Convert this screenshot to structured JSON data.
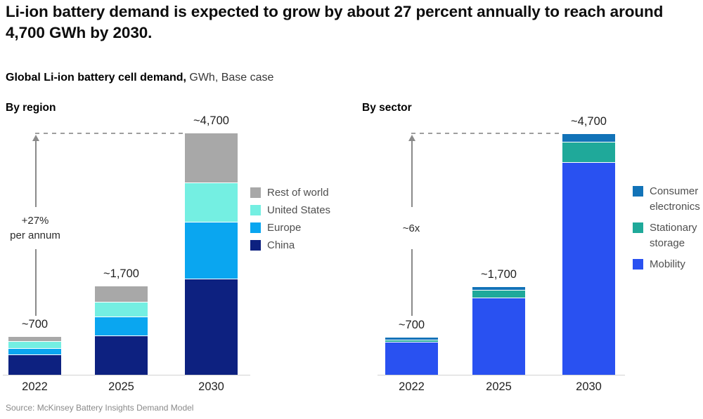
{
  "page": {
    "title": "Li-ion battery demand is expected to grow by about 27 percent annually to reach around 4,700  GWh by 2030.",
    "subtitle_bold": "Global Li-ion battery cell demand,",
    "subtitle_rest": " GWh, Base case",
    "source": "Source: McKinsey Battery Insights Demand Model"
  },
  "colors": {
    "rest_of_world": "#a8a8a8",
    "united_states": "#74efe2",
    "europe": "#0aa6f0",
    "china": "#0d2180",
    "consumer_electronics": "#1273b8",
    "stationary_storage": "#1fa99a",
    "mobility": "#2951f1",
    "dash_gray": "#9e9e9e",
    "arrow_gray": "#8a8a8a",
    "axis_gray": "#d2d2d2"
  },
  "chart_data": [
    {
      "type": "bar",
      "stacked": true,
      "title": "By region",
      "unit": "GWh",
      "categories": [
        "2022",
        "2025",
        "2030"
      ],
      "total_labels": [
        "~700",
        "~1,700",
        "~4,700"
      ],
      "series": [
        {
          "name": "Rest of world",
          "color": "#a8a8a8",
          "values": [
            80,
            310,
            960
          ]
        },
        {
          "name": "United States",
          "color": "#74efe2",
          "values": [
            120,
            270,
            760
          ]
        },
        {
          "name": "Europe",
          "color": "#0aa6f0",
          "values": [
            120,
            360,
            1100
          ]
        },
        {
          "name": "China",
          "color": "#0d2180",
          "values": [
            380,
            760,
            1880
          ]
        }
      ],
      "totals": [
        700,
        1700,
        4700
      ],
      "annotation_lines": [
        "+27%",
        "per annum"
      ],
      "ylim": [
        0,
        4700
      ],
      "grid": false,
      "legend_position": "right"
    },
    {
      "type": "bar",
      "stacked": true,
      "title": "By sector",
      "unit": "GWh",
      "categories": [
        "2022",
        "2025",
        "2030"
      ],
      "total_labels": [
        "~700",
        "~1,700",
        "~4,700"
      ],
      "series": [
        {
          "name": "Consumer electronics",
          "color": "#1273b8",
          "values": [
            40,
            60,
            150
          ]
        },
        {
          "name": "Stationary storage",
          "color": "#1fa99a",
          "values": [
            30,
            140,
            390
          ]
        },
        {
          "name": "Mobility",
          "color": "#2951f1",
          "values": [
            630,
            1500,
            4160
          ]
        }
      ],
      "totals": [
        700,
        1700,
        4700
      ],
      "annotation_lines": [
        "~6x"
      ],
      "ylim": [
        0,
        4700
      ],
      "grid": false,
      "legend_position": "right"
    }
  ]
}
